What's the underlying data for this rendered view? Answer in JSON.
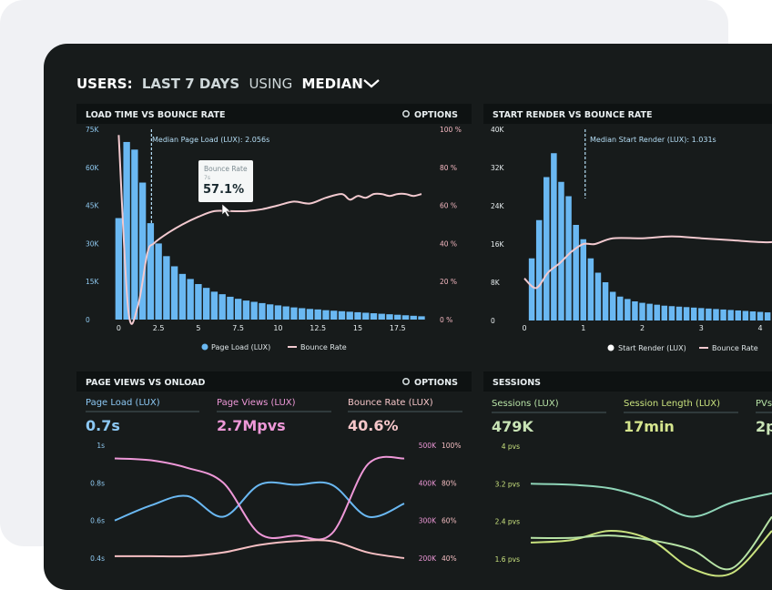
{
  "dashboard": {
    "title_prefix": "USERS:",
    "title_range": "LAST 7 DAYS",
    "title_using": "USING",
    "title_metric": "MEDIAN"
  },
  "panel_load": {
    "title": "LOAD TIME VS BOUNCE RATE",
    "options_label": "OPTIONS",
    "median_label": "Median Page Load (LUX): 2.056s",
    "tooltip_label": "Bounce Rate",
    "tooltip_sub": "7s",
    "tooltip_value": "57.1%",
    "legend_bars": "Page Load (LUX)",
    "legend_line": "Bounce Rate"
  },
  "panel_render": {
    "title": "START RENDER VS BOUNCE RATE",
    "median_label": "Median Start Render (LUX): 1.031s",
    "legend_bars": "Start Render (LUX)",
    "legend_line": "Bounce Rate"
  },
  "panel_pageviews": {
    "title": "PAGE VIEWS VS ONLOAD",
    "options_label": "OPTIONS",
    "stats": [
      {
        "label": "Page Load (LUX)",
        "value": "0.7s"
      },
      {
        "label": "Page Views (LUX)",
        "value": "2.7Mpvs"
      },
      {
        "label": "Bounce Rate (LUX)",
        "value": "40.6%"
      }
    ]
  },
  "panel_sessions": {
    "title": "SESSIONS",
    "stats": [
      {
        "label": "Sessions (LUX)",
        "value": "479K"
      },
      {
        "label": "Session Length (LUX)",
        "value": "17min"
      },
      {
        "label": "PVs",
        "value": "2p"
      }
    ]
  },
  "colors": {
    "bar": "#6ab8f2",
    "bounce": "#f2c9cf",
    "blue_line": "#6ab8f2",
    "pink_line": "#ee98d8",
    "rose_line": "#f6bfc3",
    "green1": "#b7e3a6",
    "green2": "#c9e27e",
    "green3": "#8fd5b8",
    "text_light": "#e8eef0",
    "text_dim": "#aab4b6"
  },
  "chart_data": [
    {
      "id": "load",
      "type": "bar",
      "title": "LOAD TIME VS BOUNCE RATE",
      "x_ticks": [
        "0",
        "2.5",
        "5",
        "7.5",
        "10",
        "12.5",
        "15",
        "17.5"
      ],
      "x_tick_values": [
        0,
        2.5,
        5,
        7.5,
        10,
        12.5,
        15,
        17.5
      ],
      "y_ticks_left": [
        "0",
        "15K",
        "30K",
        "45K",
        "60K",
        "75K"
      ],
      "y_ticks_right": [
        "0 %",
        "20 %",
        "40 %",
        "60 %",
        "80 %",
        "100 %"
      ],
      "ylim_left": [
        0,
        75000
      ],
      "ylim_right": [
        0,
        100
      ],
      "median_x": 2.056,
      "bar_width": 0.5,
      "x": [
        0,
        0.5,
        1,
        1.5,
        2,
        2.5,
        3,
        3.5,
        4,
        4.5,
        5,
        5.5,
        6,
        6.5,
        7,
        7.5,
        8,
        8.5,
        9,
        9.5,
        10,
        10.5,
        11,
        11.5,
        12,
        12.5,
        13,
        13.5,
        14,
        14.5,
        15,
        15.5,
        16,
        16.5,
        17,
        17.5,
        18,
        18.5,
        19
      ],
      "series": [
        {
          "name": "Page Load (LUX)",
          "values": [
            40000,
            70000,
            67000,
            54000,
            38000,
            30000,
            25000,
            21000,
            18000,
            16000,
            14000,
            12500,
            11000,
            10000,
            9000,
            8200,
            7500,
            7000,
            6500,
            6000,
            5600,
            5200,
            4800,
            4500,
            4200,
            4000,
            3700,
            3500,
            3300,
            3100,
            2900,
            2700,
            2500,
            2300,
            2100,
            1900,
            1700,
            1500,
            1300
          ]
        },
        {
          "name": "Bounce Rate",
          "axis": "right",
          "x": [
            0,
            0.6,
            1.2,
            1.8,
            2.2,
            3,
            4,
            5,
            6,
            7,
            8,
            9,
            10,
            11,
            12,
            13,
            14,
            14.5,
            15,
            15.5,
            16,
            16.5,
            17,
            17.5,
            18,
            18.5,
            19
          ],
          "values": [
            97,
            5,
            7,
            35,
            40,
            45,
            50,
            54,
            57,
            57,
            57,
            58,
            60,
            62,
            61,
            64,
            66,
            63,
            65,
            64,
            66,
            66,
            65,
            66,
            66,
            65,
            66
          ]
        }
      ]
    },
    {
      "id": "render",
      "type": "bar",
      "title": "START RENDER VS BOUNCE RATE",
      "x_ticks": [
        "0",
        "1",
        "2",
        "3",
        "4"
      ],
      "x_tick_values": [
        0,
        1,
        2,
        3,
        4
      ],
      "y_ticks_left": [
        "0",
        "8K",
        "16K",
        "24K",
        "32K",
        "40K"
      ],
      "ylim_left": [
        0,
        40000
      ],
      "median_x": 1.031,
      "bar_width": 0.125,
      "x": [
        0.125,
        0.25,
        0.375,
        0.5,
        0.625,
        0.75,
        0.875,
        1,
        1.125,
        1.25,
        1.375,
        1.5,
        1.625,
        1.75,
        1.875,
        2,
        2.125,
        2.25,
        2.375,
        2.5,
        2.625,
        2.75,
        2.875,
        3,
        3.125,
        3.25,
        3.375,
        3.5,
        3.625,
        3.75,
        3.875,
        4,
        4.125
      ],
      "series": [
        {
          "name": "Start Render (LUX)",
          "values": [
            13000,
            21000,
            30000,
            35000,
            29000,
            26000,
            20000,
            17000,
            13000,
            10000,
            8000,
            6000,
            5000,
            4500,
            4000,
            3700,
            3500,
            3300,
            3100,
            3000,
            2900,
            2800,
            2700,
            2600,
            2500,
            2400,
            2300,
            2200,
            2100,
            2000,
            1900,
            1800,
            1700
          ]
        },
        {
          "name": "Bounce Rate",
          "axis": "right",
          "ylim": [
            0,
            100
          ],
          "x": [
            0,
            0.2,
            0.4,
            0.6,
            0.8,
            1,
            1.2,
            1.5,
            2,
            2.5,
            3,
            3.5,
            4,
            4.2
          ],
          "values": [
            22,
            17,
            25,
            30,
            36,
            40,
            40,
            43,
            43,
            44,
            43,
            42,
            41,
            41
          ]
        }
      ]
    },
    {
      "id": "pageviews",
      "type": "line",
      "title": "PAGE VIEWS VS ONLOAD",
      "y_ticks_left": [
        "0.4s",
        "0.6s",
        "0.8s",
        "1s"
      ],
      "y_ticks_mid": [
        "200K",
        "300K",
        "400K",
        "500K"
      ],
      "y_ticks_right": [
        "40%",
        "60%",
        "80%",
        "100%"
      ],
      "ylim": [
        0.4,
        1.0
      ],
      "series": [
        {
          "name": "Page Load (LUX)",
          "x": [
            0,
            1,
            2,
            3,
            4,
            5,
            6,
            7,
            8
          ],
          "values": [
            0.6,
            0.68,
            0.73,
            0.62,
            0.79,
            0.79,
            0.79,
            0.62,
            0.69
          ]
        },
        {
          "name": "Page Views (LUX)",
          "x": [
            0,
            1,
            2,
            3,
            4,
            5,
            6,
            7,
            8
          ],
          "values": [
            0.93,
            0.92,
            0.88,
            0.8,
            0.53,
            0.52,
            0.53,
            0.9,
            0.93
          ]
        },
        {
          "name": "Bounce Rate (LUX)",
          "x": [
            0,
            1,
            2,
            3,
            4,
            5,
            6,
            7,
            8
          ],
          "values": [
            0.41,
            0.41,
            0.41,
            0.43,
            0.47,
            0.49,
            0.49,
            0.43,
            0.4
          ]
        }
      ]
    },
    {
      "id": "sessions",
      "type": "line",
      "title": "SESSIONS",
      "y_ticks_left": [
        "1.6 pvs",
        "2.4 pvs",
        "3.2 pvs",
        "4 pvs"
      ],
      "ylim": [
        1.6,
        4.0
      ],
      "series": [
        {
          "name": "Sessions (LUX)",
          "x": [
            0,
            1,
            2,
            3,
            4,
            5,
            6
          ],
          "values": [
            3.2,
            3.18,
            3.1,
            2.85,
            2.5,
            2.8,
            3.0
          ]
        },
        {
          "name": "Session Length (LUX)",
          "x": [
            0,
            1,
            2,
            3,
            4,
            5,
            6
          ],
          "values": [
            1.95,
            2.0,
            2.2,
            2.0,
            1.4,
            1.3,
            2.2
          ]
        },
        {
          "name": "PVs",
          "x": [
            0,
            1,
            2,
            3,
            4,
            5,
            6
          ],
          "values": [
            2.05,
            2.05,
            2.1,
            2.0,
            1.8,
            1.4,
            2.5
          ]
        }
      ]
    }
  ]
}
